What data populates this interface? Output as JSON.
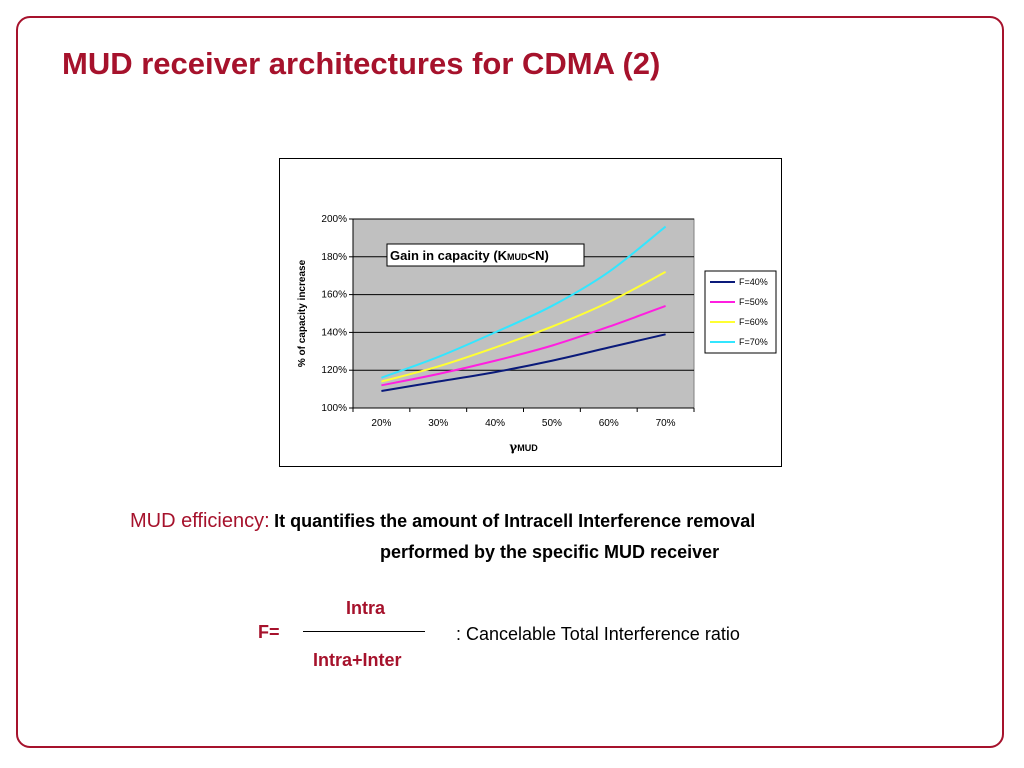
{
  "slide": {
    "title": "MUD receiver architectures for CDMA (2)"
  },
  "chart_data": {
    "type": "line",
    "title": "Gain in capacity (K",
    "title_sub": "MUD",
    "title_tail": "<N)",
    "xlabel_symbol": "γ",
    "xlabel": "MUD",
    "ylabel": "% of capacity increase",
    "x": [
      "20%",
      "30%",
      "40%",
      "50%",
      "60%",
      "70%"
    ],
    "x_values": [
      20,
      30,
      40,
      50,
      60,
      70
    ],
    "xlim": [
      15,
      75
    ],
    "ylim": [
      100,
      200
    ],
    "y_ticks": [
      100,
      120,
      140,
      160,
      180,
      200
    ],
    "y_tick_labels": [
      "100%",
      "120%",
      "140%",
      "160%",
      "180%",
      "200%"
    ],
    "grid": true,
    "legend_position": "right",
    "series": [
      {
        "name": "F=40%",
        "color": "#0a1a7a",
        "values": [
          109,
          114,
          119,
          125,
          132,
          139
        ]
      },
      {
        "name": "F=50%",
        "color": "#ff1fe0",
        "values": [
          112,
          118,
          125,
          133,
          143,
          154
        ]
      },
      {
        "name": "F=60%",
        "color": "#ffff33",
        "values": [
          114,
          122,
          132,
          143,
          156,
          172
        ]
      },
      {
        "name": "F=70%",
        "color": "#33e6ff",
        "values": [
          116,
          127,
          140,
          154,
          172,
          196
        ]
      }
    ]
  },
  "efficiency": {
    "label": "MUD efficiency:",
    "text_line1": "It quantifies the amount of Intracell Interference removal",
    "text_line2": "performed by the specific MUD receiver"
  },
  "formula": {
    "lhs": "F=",
    "numerator": "Intra",
    "denominator": "Intra+Inter",
    "description": ":  Cancelable Total Interference ratio"
  },
  "colors": {
    "accent": "#a6122c",
    "plot_area": "#c0c0c0"
  }
}
